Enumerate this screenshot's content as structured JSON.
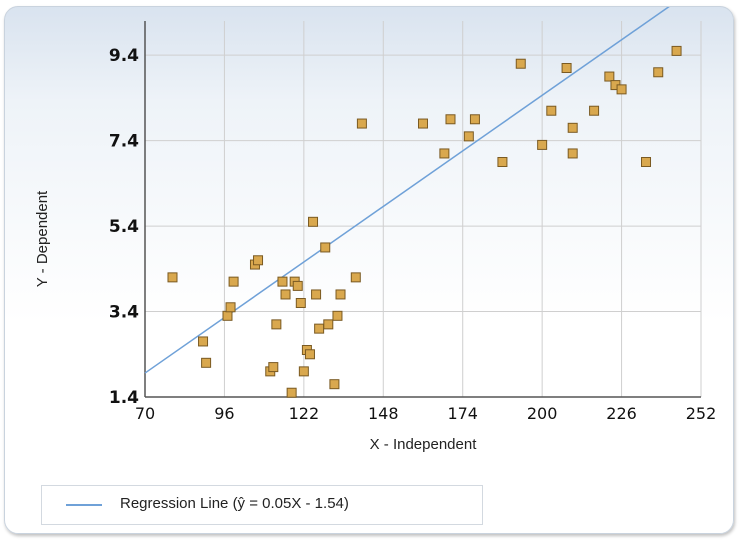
{
  "chart_data": {
    "type": "scatter",
    "xlabel": "X - Independent",
    "ylabel": "Y - Dependent",
    "xlim": [
      70,
      252
    ],
    "ylim": [
      1.4,
      10.2
    ],
    "x_ticks": [
      70,
      96,
      122,
      148,
      174,
      200,
      226,
      252
    ],
    "y_ticks": [
      1.4,
      3.4,
      5.4,
      7.4,
      9.4
    ],
    "grid": true,
    "legend_position": "bottom-left",
    "series": [
      {
        "kind": "points",
        "marker": "square",
        "color": "#d9a84e",
        "points": [
          [
            79,
            4.2
          ],
          [
            89,
            2.7
          ],
          [
            90,
            2.2
          ],
          [
            97,
            3.3
          ],
          [
            98,
            3.5
          ],
          [
            99,
            4.1
          ],
          [
            106,
            4.5
          ],
          [
            107,
            4.6
          ],
          [
            111,
            2.0
          ],
          [
            112,
            2.1
          ],
          [
            113,
            3.1
          ],
          [
            115,
            4.1
          ],
          [
            116,
            3.8
          ],
          [
            118,
            1.5
          ],
          [
            119,
            4.1
          ],
          [
            120,
            4.0
          ],
          [
            121,
            3.6
          ],
          [
            122,
            2.0
          ],
          [
            123,
            2.5
          ],
          [
            124,
            2.4
          ],
          [
            125,
            5.5
          ],
          [
            126,
            3.8
          ],
          [
            127,
            3.0
          ],
          [
            129,
            4.9
          ],
          [
            130,
            3.1
          ],
          [
            132,
            1.7
          ],
          [
            133,
            3.3
          ],
          [
            134,
            3.8
          ],
          [
            139,
            4.2
          ],
          [
            141,
            7.8
          ],
          [
            161,
            7.8
          ],
          [
            168,
            7.1
          ],
          [
            170,
            7.9
          ],
          [
            176,
            7.5
          ],
          [
            178,
            7.9
          ],
          [
            187,
            6.9
          ],
          [
            193,
            9.2
          ],
          [
            200,
            7.3
          ],
          [
            203,
            8.1
          ],
          [
            208,
            9.1
          ],
          [
            210,
            7.1
          ],
          [
            210,
            7.7
          ],
          [
            217,
            8.1
          ],
          [
            222,
            8.9
          ],
          [
            224,
            8.7
          ],
          [
            226,
            8.6
          ],
          [
            234,
            6.9
          ],
          [
            238,
            9.0
          ],
          [
            244,
            9.5
          ]
        ]
      },
      {
        "kind": "line",
        "name": "Regression Line (ŷ = 0.05X - 1.54)",
        "color": "#6fa1d8",
        "slope": 0.05,
        "intercept": -1.54
      }
    ]
  }
}
